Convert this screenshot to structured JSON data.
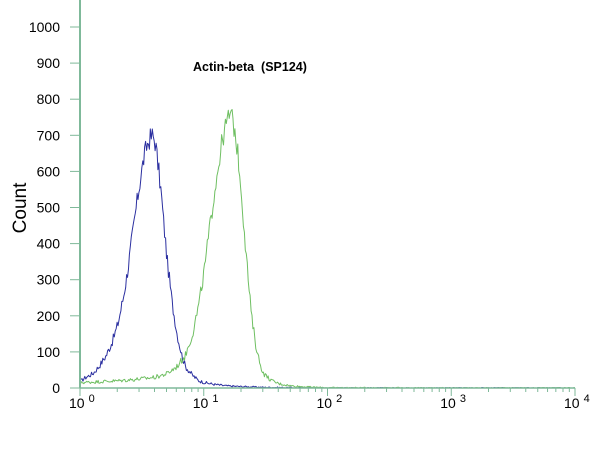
{
  "chart_data": {
    "type": "line",
    "title": "Actin-beta  (SP124)",
    "xlabel": "",
    "ylabel": "Count",
    "x_scale": "log",
    "xlim": [
      1,
      10000
    ],
    "ylim": [
      0,
      1000
    ],
    "grid": false,
    "legend": "none",
    "y_ticks": [
      "0",
      "100",
      "200",
      "300",
      "400",
      "500",
      "600",
      "700",
      "800",
      "900",
      "1000"
    ],
    "x_ticks": [
      {
        "base": "10",
        "exp": "0"
      },
      {
        "base": "10",
        "exp": "1"
      },
      {
        "base": "10",
        "exp": "2"
      },
      {
        "base": "10",
        "exp": "3"
      },
      {
        "base": "10",
        "exp": "4"
      }
    ],
    "series": [
      {
        "color": "#2b2fa0",
        "x": [
          1.0,
          1.1,
          1.25,
          1.4,
          1.6,
          1.8,
          2.0,
          2.2,
          2.4,
          2.6,
          2.8,
          3.0,
          3.2,
          3.4,
          3.6,
          3.8,
          4.0,
          4.2,
          4.4,
          4.7,
          5.0,
          5.5,
          6.0,
          6.5,
          7.0,
          8.0,
          9.0,
          10,
          12,
          15,
          20,
          30,
          50,
          100,
          500,
          10000
        ],
        "y": [
          20,
          30,
          40,
          60,
          90,
          130,
          180,
          250,
          330,
          420,
          500,
          570,
          630,
          670,
          690,
          700,
          680,
          620,
          560,
          450,
          350,
          230,
          150,
          95,
          60,
          35,
          20,
          15,
          10,
          6,
          4,
          2,
          1,
          0,
          0,
          0
        ]
      },
      {
        "color": "#6fbf62",
        "x": [
          1.0,
          1.5,
          2.0,
          3.0,
          4.0,
          5.0,
          6.0,
          7.0,
          8.0,
          9.0,
          10,
          11,
          12,
          13,
          14,
          15,
          16,
          17,
          18,
          19,
          20,
          21,
          22,
          23,
          24,
          26,
          28,
          30,
          35,
          40,
          50,
          60,
          80,
          100,
          1000,
          10000
        ],
        "y": [
          15,
          18,
          20,
          25,
          30,
          40,
          60,
          90,
          150,
          230,
          330,
          440,
          540,
          620,
          690,
          730,
          760,
          740,
          690,
          620,
          530,
          440,
          350,
          270,
          200,
          120,
          70,
          40,
          20,
          12,
          6,
          4,
          2,
          1,
          0,
          0
        ]
      }
    ]
  }
}
